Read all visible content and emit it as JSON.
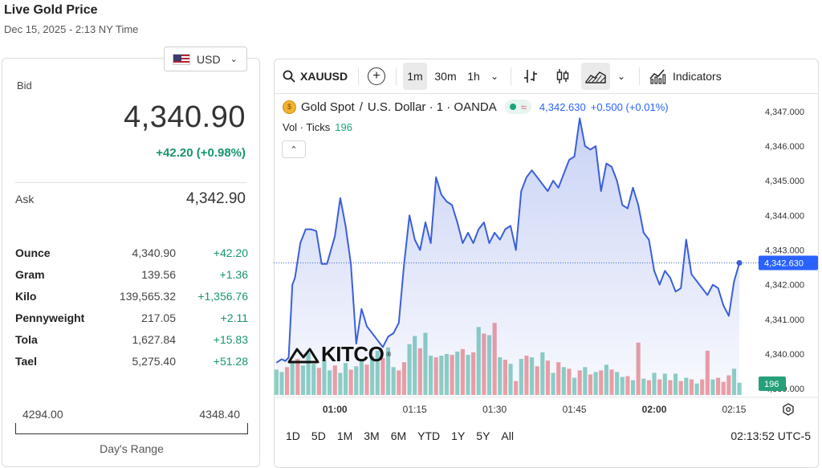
{
  "header": {
    "title": "Live Gold Price",
    "subtitle": "Dec 15, 2025 - 2:13 NY Time"
  },
  "price_panel": {
    "currency": "USD",
    "bid_label": "Bid",
    "bid_value": "4,340.90",
    "bid_change": "+42.20 (+0.98%)",
    "ask_label": "Ask",
    "ask_value": "4,342.90",
    "units": [
      {
        "unit": "Ounce",
        "price": "4,340.90",
        "change": "+42.20"
      },
      {
        "unit": "Gram",
        "price": "139.56",
        "change": "+1.36"
      },
      {
        "unit": "Kilo",
        "price": "139,565.32",
        "change": "+1,356.76"
      },
      {
        "unit": "Pennyweight",
        "price": "217.05",
        "change": "+2.11"
      },
      {
        "unit": "Tola",
        "price": "1,627.84",
        "change": "+15.83"
      },
      {
        "unit": "Tael",
        "price": "5,275.40",
        "change": "+51.28"
      }
    ],
    "range_low": "4294.00",
    "range_high": "4348.40",
    "range_label": "Day's Range"
  },
  "toolbar": {
    "symbol": "XAUUSD",
    "intervals": [
      "1m",
      "30m",
      "1h"
    ],
    "active_interval": "1m",
    "indicators_label": "Indicators"
  },
  "legend": {
    "instrument": "Gold Spot",
    "separator": "/",
    "quote": "U.S. Dollar · 1 · OANDA",
    "price": "4,342.630",
    "change": "+0.500 (+0.01%)",
    "vol_label": "Vol · Ticks",
    "vol_value": "196"
  },
  "logo_text": "KITCO",
  "range_buttons": [
    "1D",
    "5D",
    "1M",
    "3M",
    "6M",
    "YTD",
    "1Y",
    "5Y",
    "All"
  ],
  "clock": "02:13:52 UTC-5",
  "colors": {
    "line": "#3b5fd9",
    "up_volume": "#8fd1c4",
    "down_volume": "#f0a0a4",
    "positive": "#17956f",
    "last_price_label": "#2962ff",
    "volume_label": "#26a07a"
  },
  "chart_data": {
    "type": "area",
    "price_last_label": "4,342.630",
    "volume_last_label": "196",
    "y_ticks": [
      "4,347.000",
      "4,346.000",
      "4,345.000",
      "4,344.000",
      "4,343.000",
      "4,342.000",
      "4,341.000",
      "4,340.000",
      "4,339.000"
    ],
    "ylim": [
      4338.75,
      4347.25
    ],
    "x_ticks": [
      {
        "label": "01:00",
        "minute": 0,
        "bold": true
      },
      {
        "label": "01:15",
        "minute": 15,
        "bold": false
      },
      {
        "label": "01:30",
        "minute": 30,
        "bold": false
      },
      {
        "label": "01:45",
        "minute": 45,
        "bold": false
      },
      {
        "label": "02:00",
        "minute": 60,
        "bold": true
      },
      {
        "label": "02:15",
        "minute": 75,
        "bold": false
      }
    ],
    "minute_range": [
      -11.5,
      79
    ],
    "price_series": [
      [
        -11,
        4339.75
      ],
      [
        -10,
        4339.85
      ],
      [
        -9.3,
        4339.8
      ],
      [
        -8.7,
        4339.9
      ],
      [
        -8,
        4342.0
      ],
      [
        -7.5,
        4342.2
      ],
      [
        -6.5,
        4343.2
      ],
      [
        -5.5,
        4343.6
      ],
      [
        -4.5,
        4343.6
      ],
      [
        -3.5,
        4343.55
      ],
      [
        -2.5,
        4342.6
      ],
      [
        -1.5,
        4342.6
      ],
      [
        0,
        4343.4
      ],
      [
        1,
        4344.5
      ],
      [
        2,
        4343.7
      ],
      [
        3,
        4342.6
      ],
      [
        4,
        4340.3
      ],
      [
        5,
        4341.3
      ],
      [
        6,
        4340.8
      ],
      [
        7,
        4340.6
      ],
      [
        8,
        4340.4
      ],
      [
        9,
        4340.2
      ],
      [
        10,
        4340.5
      ],
      [
        11,
        4340.6
      ],
      [
        12,
        4340.9
      ],
      [
        13,
        4342.6
      ],
      [
        14,
        4344.0
      ],
      [
        15,
        4343.3
      ],
      [
        16,
        4343.0
      ],
      [
        17,
        4343.8
      ],
      [
        18,
        4343.2
      ],
      [
        19,
        4345.1
      ],
      [
        20,
        4344.6
      ],
      [
        21,
        4344.4
      ],
      [
        22,
        4344.3
      ],
      [
        23,
        4343.8
      ],
      [
        24,
        4343.2
      ],
      [
        25,
        4343.5
      ],
      [
        26,
        4343.2
      ],
      [
        27,
        4343.6
      ],
      [
        28,
        4343.8
      ],
      [
        29,
        4343.2
      ],
      [
        30,
        4343.5
      ],
      [
        31,
        4343.3
      ],
      [
        32,
        4343.6
      ],
      [
        33,
        4343.7
      ],
      [
        34,
        4343.0
      ],
      [
        35,
        4344.7
      ],
      [
        36,
        4345.1
      ],
      [
        37,
        4345.3
      ],
      [
        38,
        4345.1
      ],
      [
        39,
        4344.9
      ],
      [
        40,
        4344.7
      ],
      [
        41,
        4345.0
      ],
      [
        42,
        4344.8
      ],
      [
        43,
        4345.2
      ],
      [
        44,
        4345.6
      ],
      [
        45,
        4345.7
      ],
      [
        46,
        4346.8
      ],
      [
        47,
        4346.0
      ],
      [
        48,
        4345.9
      ],
      [
        49,
        4346.0
      ],
      [
        50,
        4344.7
      ],
      [
        51,
        4345.5
      ],
      [
        52,
        4345.4
      ],
      [
        53,
        4345.0
      ],
      [
        54,
        4344.3
      ],
      [
        55,
        4344.2
      ],
      [
        56,
        4344.8
      ],
      [
        57,
        4344.3
      ],
      [
        58,
        4343.5
      ],
      [
        59,
        4343.3
      ],
      [
        60,
        4342.4
      ],
      [
        61,
        4342.0
      ],
      [
        62,
        4342.4
      ],
      [
        63,
        4342.2
      ],
      [
        64,
        4341.8
      ],
      [
        65,
        4341.9
      ],
      [
        66,
        4343.3
      ],
      [
        67,
        4342.3
      ],
      [
        68,
        4342.1
      ],
      [
        69,
        4341.9
      ],
      [
        70,
        4341.7
      ],
      [
        71,
        4342.0
      ],
      [
        72,
        4341.9
      ],
      [
        73,
        4341.4
      ],
      [
        74,
        4341.1
      ],
      [
        75,
        4342.1
      ],
      [
        76,
        4342.63
      ]
    ],
    "volume_bars": [
      {
        "minute": -11,
        "height": 0.31,
        "dir": "up"
      },
      {
        "minute": -10,
        "height": 0.28,
        "dir": "up"
      },
      {
        "minute": -9,
        "height": 0.34,
        "dir": "down"
      },
      {
        "minute": -8,
        "height": 0.41,
        "dir": "up"
      },
      {
        "minute": -7,
        "height": 0.44,
        "dir": "down"
      },
      {
        "minute": -6,
        "height": 0.36,
        "dir": "up"
      },
      {
        "minute": -5,
        "height": 0.52,
        "dir": "up"
      },
      {
        "minute": -4,
        "height": 0.38,
        "dir": "up"
      },
      {
        "minute": -3,
        "height": 0.33,
        "dir": "down"
      },
      {
        "minute": -2,
        "height": 0.42,
        "dir": "up"
      },
      {
        "minute": -1,
        "height": 0.3,
        "dir": "up"
      },
      {
        "minute": 0,
        "height": 0.36,
        "dir": "down"
      },
      {
        "minute": 1,
        "height": 0.27,
        "dir": "up"
      },
      {
        "minute": 2,
        "height": 0.39,
        "dir": "up"
      },
      {
        "minute": 3,
        "height": 0.31,
        "dir": "down"
      },
      {
        "minute": 4,
        "height": 0.35,
        "dir": "up"
      },
      {
        "minute": 5,
        "height": 0.44,
        "dir": "up"
      },
      {
        "minute": 6,
        "height": 0.37,
        "dir": "down"
      },
      {
        "minute": 7,
        "height": 0.47,
        "dir": "up"
      },
      {
        "minute": 8,
        "height": 0.54,
        "dir": "up"
      },
      {
        "minute": 9,
        "height": 0.45,
        "dir": "down"
      },
      {
        "minute": 10,
        "height": 0.58,
        "dir": "up"
      },
      {
        "minute": 11,
        "height": 0.34,
        "dir": "up"
      },
      {
        "minute": 12,
        "height": 0.3,
        "dir": "down"
      },
      {
        "minute": 13,
        "height": 0.4,
        "dir": "down"
      },
      {
        "minute": 14,
        "height": 0.62,
        "dir": "up"
      },
      {
        "minute": 15,
        "height": 0.72,
        "dir": "up"
      },
      {
        "minute": 16,
        "height": 0.57,
        "dir": "down"
      },
      {
        "minute": 17,
        "height": 0.76,
        "dir": "up"
      },
      {
        "minute": 18,
        "height": 0.48,
        "dir": "up"
      },
      {
        "minute": 19,
        "height": 0.46,
        "dir": "down"
      },
      {
        "minute": 20,
        "height": 0.48,
        "dir": "up"
      },
      {
        "minute": 21,
        "height": 0.5,
        "dir": "up"
      },
      {
        "minute": 22,
        "height": 0.49,
        "dir": "down"
      },
      {
        "minute": 23,
        "height": 0.53,
        "dir": "up"
      },
      {
        "minute": 24,
        "height": 0.56,
        "dir": "down"
      },
      {
        "minute": 25,
        "height": 0.49,
        "dir": "up"
      },
      {
        "minute": 26,
        "height": 0.52,
        "dir": "down"
      },
      {
        "minute": 27,
        "height": 0.83,
        "dir": "up"
      },
      {
        "minute": 28,
        "height": 0.75,
        "dir": "down"
      },
      {
        "minute": 29,
        "height": 0.73,
        "dir": "up"
      },
      {
        "minute": 30,
        "height": 0.88,
        "dir": "down"
      },
      {
        "minute": 31,
        "height": 0.46,
        "dir": "up"
      },
      {
        "minute": 32,
        "height": 0.43,
        "dir": "down"
      },
      {
        "minute": 33,
        "height": 0.38,
        "dir": "up"
      },
      {
        "minute": 34,
        "height": 0.17,
        "dir": "down"
      },
      {
        "minute": 35,
        "height": 0.44,
        "dir": "up"
      },
      {
        "minute": 36,
        "height": 0.48,
        "dir": "down"
      },
      {
        "minute": 37,
        "height": 0.46,
        "dir": "up"
      },
      {
        "minute": 38,
        "height": 0.35,
        "dir": "down"
      },
      {
        "minute": 39,
        "height": 0.52,
        "dir": "up"
      },
      {
        "minute": 40,
        "height": 0.42,
        "dir": "down"
      },
      {
        "minute": 41,
        "height": 0.27,
        "dir": "up"
      },
      {
        "minute": 42,
        "height": 0.4,
        "dir": "down"
      },
      {
        "minute": 43,
        "height": 0.34,
        "dir": "up"
      },
      {
        "minute": 44,
        "height": 0.32,
        "dir": "down"
      },
      {
        "minute": 45,
        "height": 0.21,
        "dir": "up"
      },
      {
        "minute": 46,
        "height": 0.3,
        "dir": "down"
      },
      {
        "minute": 47,
        "height": 0.34,
        "dir": "up"
      },
      {
        "minute": 48,
        "height": 0.25,
        "dir": "down"
      },
      {
        "minute": 49,
        "height": 0.28,
        "dir": "up"
      },
      {
        "minute": 50,
        "height": 0.3,
        "dir": "down"
      },
      {
        "minute": 51,
        "height": 0.37,
        "dir": "up"
      },
      {
        "minute": 52,
        "height": 0.31,
        "dir": "down"
      },
      {
        "minute": 53,
        "height": 0.28,
        "dir": "up"
      },
      {
        "minute": 54,
        "height": 0.22,
        "dir": "up"
      },
      {
        "minute": 55,
        "height": 0.23,
        "dir": "down"
      },
      {
        "minute": 56,
        "height": 0.18,
        "dir": "up"
      },
      {
        "minute": 57,
        "height": 0.64,
        "dir": "down"
      },
      {
        "minute": 58,
        "height": 0.2,
        "dir": "up"
      },
      {
        "minute": 59,
        "height": 0.18,
        "dir": "down"
      },
      {
        "minute": 60,
        "height": 0.27,
        "dir": "up"
      },
      {
        "minute": 61,
        "height": 0.19,
        "dir": "down"
      },
      {
        "minute": 62,
        "height": 0.26,
        "dir": "up"
      },
      {
        "minute": 63,
        "height": 0.18,
        "dir": "down"
      },
      {
        "minute": 64,
        "height": 0.26,
        "dir": "up"
      },
      {
        "minute": 65,
        "height": 0.17,
        "dir": "down"
      },
      {
        "minute": 66,
        "height": 0.21,
        "dir": "up"
      },
      {
        "minute": 67,
        "height": 0.19,
        "dir": "down"
      },
      {
        "minute": 68,
        "height": 0.14,
        "dir": "up"
      },
      {
        "minute": 69,
        "height": 0.19,
        "dir": "down"
      },
      {
        "minute": 70,
        "height": 0.54,
        "dir": "down"
      },
      {
        "minute": 71,
        "height": 0.19,
        "dir": "up"
      },
      {
        "minute": 72,
        "height": 0.21,
        "dir": "down"
      },
      {
        "minute": 73,
        "height": 0.16,
        "dir": "down"
      },
      {
        "minute": 74,
        "height": 0.24,
        "dir": "down"
      },
      {
        "minute": 75,
        "height": 0.32,
        "dir": "up"
      },
      {
        "minute": 76,
        "height": 0.15,
        "dir": "up"
      }
    ]
  }
}
